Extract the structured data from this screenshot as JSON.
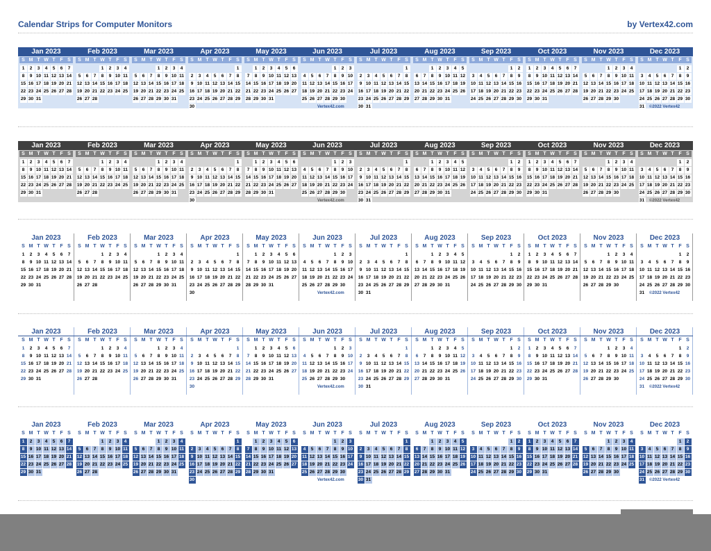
{
  "header": {
    "title": "Calendar Strips for Computer Monitors",
    "byline": "by Vertex42.com"
  },
  "weekday_letters": [
    "S",
    "M",
    "T",
    "W",
    "T",
    "F",
    "S"
  ],
  "months": [
    {
      "label": "Jan 2023",
      "start": 0,
      "days": 31
    },
    {
      "label": "Feb 2023",
      "start": 3,
      "days": 28
    },
    {
      "label": "Mar 2023",
      "start": 3,
      "days": 31
    },
    {
      "label": "Apr 2023",
      "start": 6,
      "days": 30
    },
    {
      "label": "May 2023",
      "start": 1,
      "days": 31
    },
    {
      "label": "Jun 2023",
      "start": 4,
      "days": 30
    },
    {
      "label": "Jul 2023",
      "start": 6,
      "days": 31
    },
    {
      "label": "Aug 2023",
      "start": 2,
      "days": 31
    },
    {
      "label": "Sep 2023",
      "start": 5,
      "days": 30
    },
    {
      "label": "Oct 2023",
      "start": 0,
      "days": 31
    },
    {
      "label": "Nov 2023",
      "start": 3,
      "days": 30
    },
    {
      "label": "Dec 2023",
      "start": 5,
      "days": 31
    }
  ],
  "strips": [
    {
      "style": "s1",
      "credit": "Vertex42.com",
      "copyright": "©2022 Vertex42"
    },
    {
      "style": "s2",
      "credit": "Vertex42.com",
      "copyright": "©2022 Vertex42"
    },
    {
      "style": "s3",
      "credit": "Vertex42.com",
      "copyright": "©2022 Vertex42"
    },
    {
      "style": "s4",
      "credit": "Vertex42.com",
      "copyright": "©2022 Vertex42"
    },
    {
      "style": "s5",
      "credit": "Vertex42.com",
      "copyright": "©2022 Vertex42"
    }
  ],
  "colors": {
    "accent": "#2f5597",
    "accent_light": "#b4c7e7",
    "dark_header": "#404040",
    "footer": "#808080"
  }
}
